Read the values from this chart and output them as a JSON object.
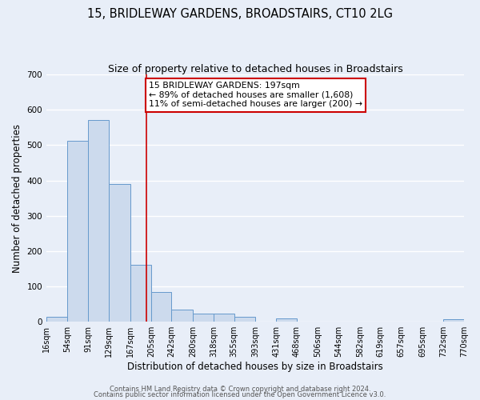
{
  "title": "15, BRIDLEWAY GARDENS, BROADSTAIRS, CT10 2LG",
  "subtitle": "Size of property relative to detached houses in Broadstairs",
  "xlabel": "Distribution of detached houses by size in Broadstairs",
  "ylabel": "Number of detached properties",
  "bin_edges": [
    16,
    54,
    91,
    129,
    167,
    205,
    242,
    280,
    318,
    355,
    393,
    431,
    468,
    506,
    544,
    582,
    619,
    657,
    695,
    732,
    770
  ],
  "bar_heights": [
    13,
    511,
    570,
    390,
    162,
    84,
    35,
    22,
    22,
    15,
    0,
    10,
    0,
    0,
    0,
    0,
    0,
    0,
    0,
    7
  ],
  "bar_color": "#ccdaed",
  "bar_edgecolor": "#6699cc",
  "vline_x": 197,
  "vline_color": "#cc0000",
  "annotation_title": "15 BRIDLEWAY GARDENS: 197sqm",
  "annotation_line1": "← 89% of detached houses are smaller (1,608)",
  "annotation_line2": "11% of semi-detached houses are larger (200) →",
  "annotation_box_color": "white",
  "annotation_box_edgecolor": "#cc0000",
  "ylim": [
    0,
    700
  ],
  "yticks": [
    0,
    100,
    200,
    300,
    400,
    500,
    600,
    700
  ],
  "tick_labels": [
    "16sqm",
    "54sqm",
    "91sqm",
    "129sqm",
    "167sqm",
    "205sqm",
    "242sqm",
    "280sqm",
    "318sqm",
    "355sqm",
    "393sqm",
    "431sqm",
    "468sqm",
    "506sqm",
    "544sqm",
    "582sqm",
    "619sqm",
    "657sqm",
    "695sqm",
    "732sqm",
    "770sqm"
  ],
  "footer1": "Contains HM Land Registry data © Crown copyright and database right 2024.",
  "footer2": "Contains public sector information licensed under the Open Government Licence v3.0.",
  "bg_color": "#e8eef8",
  "plot_bg_color": "#e8eef8",
  "grid_color": "#ffffff",
  "title_fontsize": 10.5,
  "subtitle_fontsize": 9,
  "axis_label_fontsize": 8.5,
  "tick_fontsize": 7,
  "annotation_fontsize": 7.8,
  "footer_fontsize": 6
}
